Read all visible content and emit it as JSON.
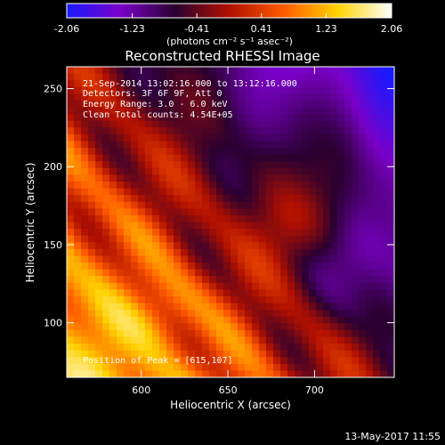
{
  "chart_data": {
    "type": "heatmap",
    "title": "Reconstructed RHESSI Image",
    "xlabel": "Heliocentric X (arcsec)",
    "ylabel": "Heliocentric Y (arcsec)",
    "xlim": [
      557,
      746
    ],
    "ylim": [
      65,
      264
    ],
    "xticks": [
      600,
      650,
      700
    ],
    "yticks": [
      100,
      150,
      200,
      250
    ],
    "colorbar": {
      "label": "(photons cm⁻² s⁻¹ asec⁻²)",
      "vmin": -2.06,
      "vmax": 2.06,
      "ticks": [
        "-2.06",
        "-1.23",
        "-0.41",
        "0.41",
        "1.23",
        "2.06"
      ],
      "colormap": [
        "#1a1aff",
        "#7a00c8",
        "#2a0030",
        "#b01000",
        "#ff5a00",
        "#ffd200",
        "#ffffff"
      ]
    },
    "peak": {
      "x": 615,
      "y": 107
    },
    "annotations": [
      "21-Sep-2014 13:02:16.000 to 13:12:16.000",
      "Detectors: 3F 6F 9F, Att 0",
      "Energy Range: 3.0 - 6.0 keV",
      "Clean    Total counts: 4.54E+05",
      "Position of Peak = [615,107]"
    ],
    "timestamp": "13-May-2017 11:55"
  }
}
